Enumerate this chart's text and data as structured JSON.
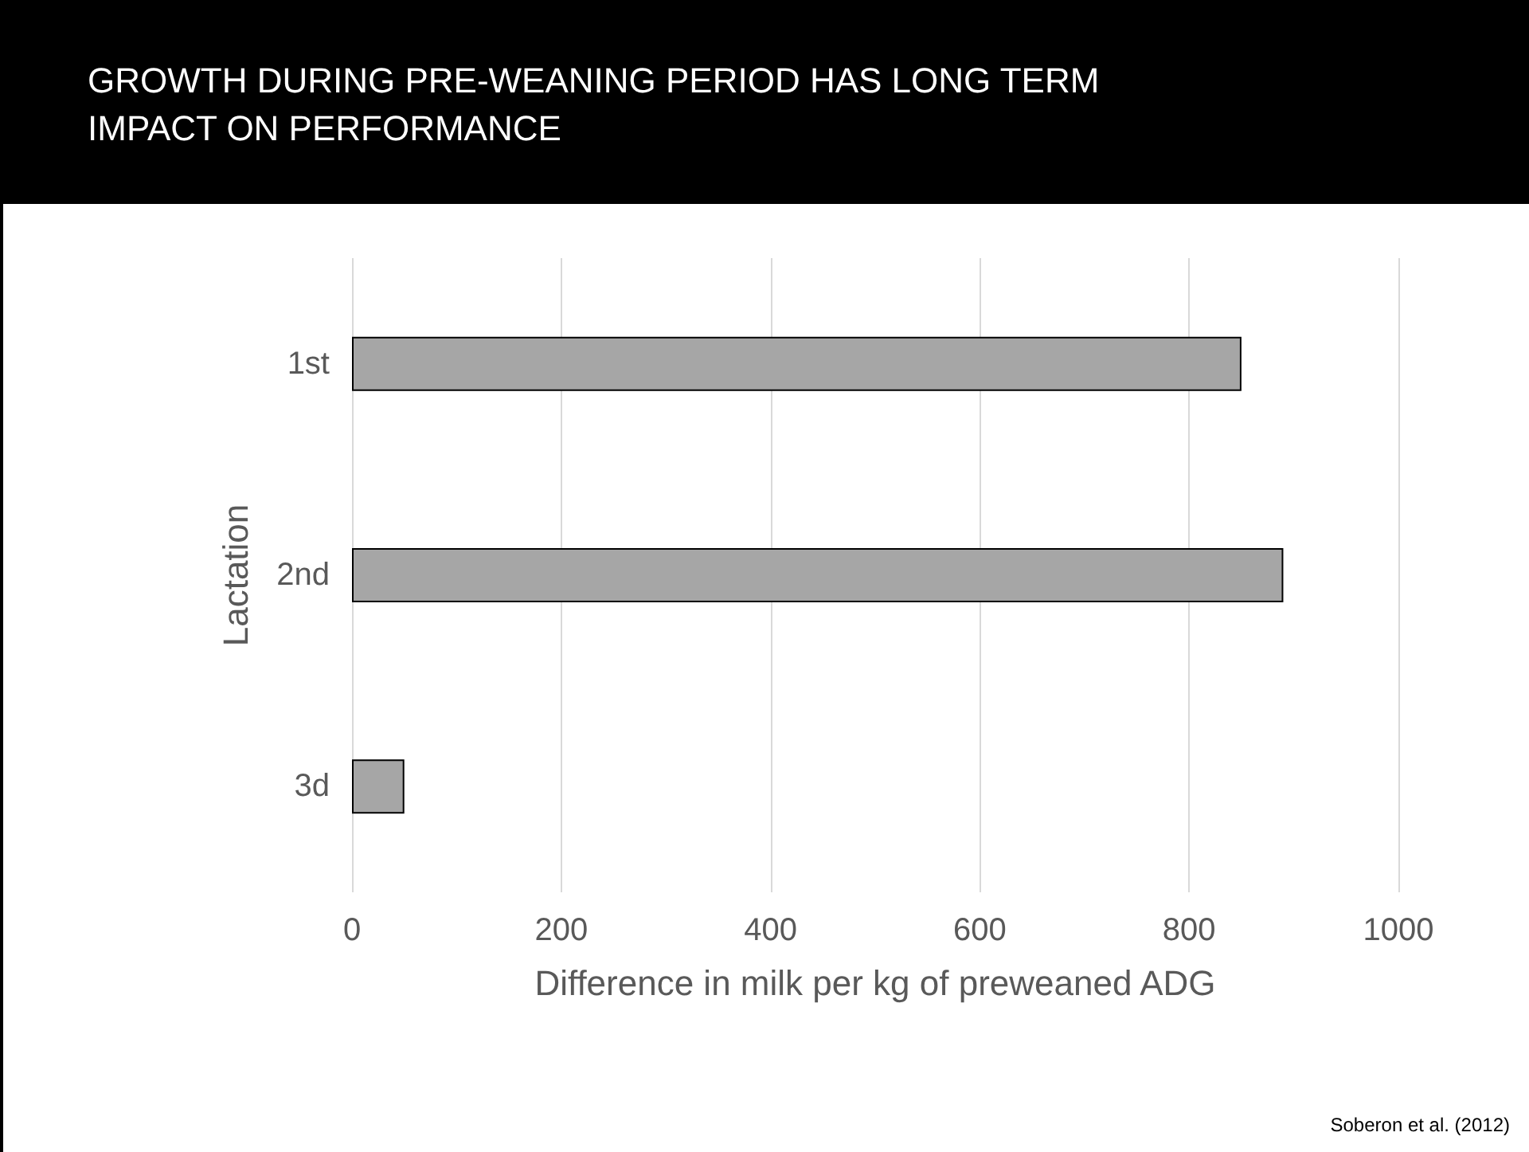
{
  "chart_data": {
    "type": "bar",
    "orientation": "horizontal",
    "title": "GROWTH DURING PRE-WEANING PERIOD HAS LONG TERM IMPACT ON PERFORMANCE",
    "categories": [
      "1st",
      "2nd",
      "3d"
    ],
    "values": [
      850,
      890,
      50
    ],
    "color": "#a6a6a6",
    "xlim": [
      0,
      1000
    ],
    "xticks": [
      0,
      200,
      400,
      600,
      800,
      1000
    ],
    "grid": "x",
    "xlabel": "Difference in milk per kg of preweaned ADG",
    "ylabel": "Lactation",
    "annotations": [
      "Soberon et al. (2012)"
    ]
  }
}
